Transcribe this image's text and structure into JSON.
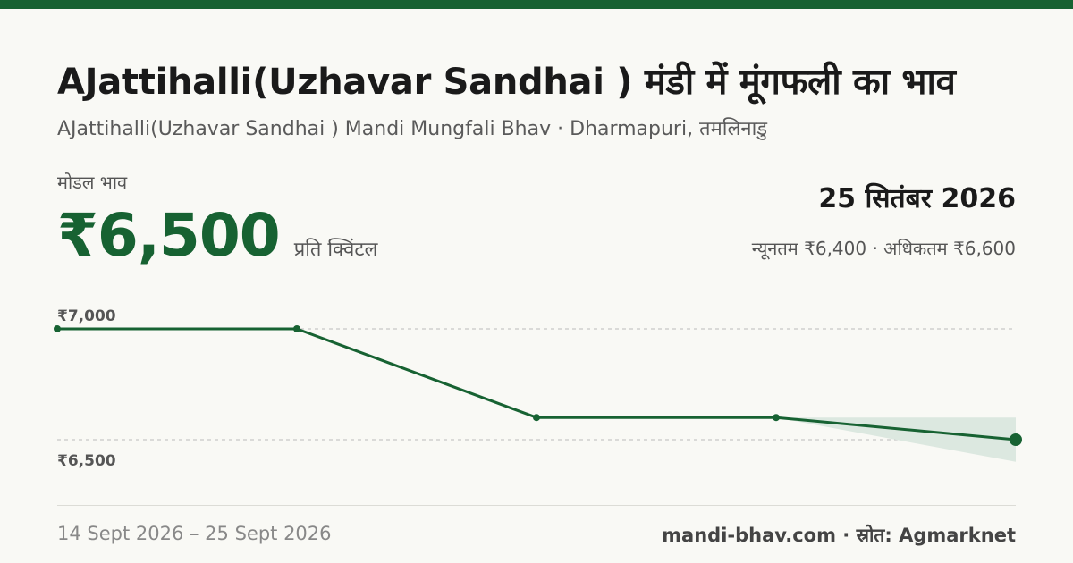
{
  "header": {
    "title": "AJattihalli(Uzhavar Sandhai ) मंडी में मूंगफली का भाव",
    "subtitle": "AJattihalli(Uzhavar Sandhai ) Mandi Mungfali Bhav · Dharmapuri, तमलिनाडु"
  },
  "price": {
    "label": "मोडल भाव",
    "value": "₹6,500",
    "unit": "प्रति क्विंटल"
  },
  "summary": {
    "date": "25 सितंबर 2026",
    "minmax": "न्यूनतम ₹6,400 · अधिकतम ₹6,600"
  },
  "footer": {
    "date_range": "14 Sept 2026 – 25 Sept 2026",
    "source": "mandi-bhav.com · स्रोत: Agmarknet"
  },
  "colors": {
    "accent": "#176232",
    "band": "#dce8e0",
    "gridline": "#bbbbbb"
  },
  "chart_data": {
    "type": "line",
    "x": [
      "14 Sept 2026",
      "",
      "",
      "",
      "25 Sept 2026"
    ],
    "series": [
      {
        "values": [
          7000,
          7000,
          6600,
          6600,
          6500
        ]
      }
    ],
    "range_band": {
      "start_index": 3,
      "min": [
        6600,
        6400
      ],
      "max": [
        6600,
        6600
      ]
    },
    "yticks": [
      7000,
      6500
    ],
    "ytick_labels": [
      "₹7,000",
      "₹6,500"
    ],
    "ylim": [
      6400,
      7100
    ],
    "grid": true
  }
}
